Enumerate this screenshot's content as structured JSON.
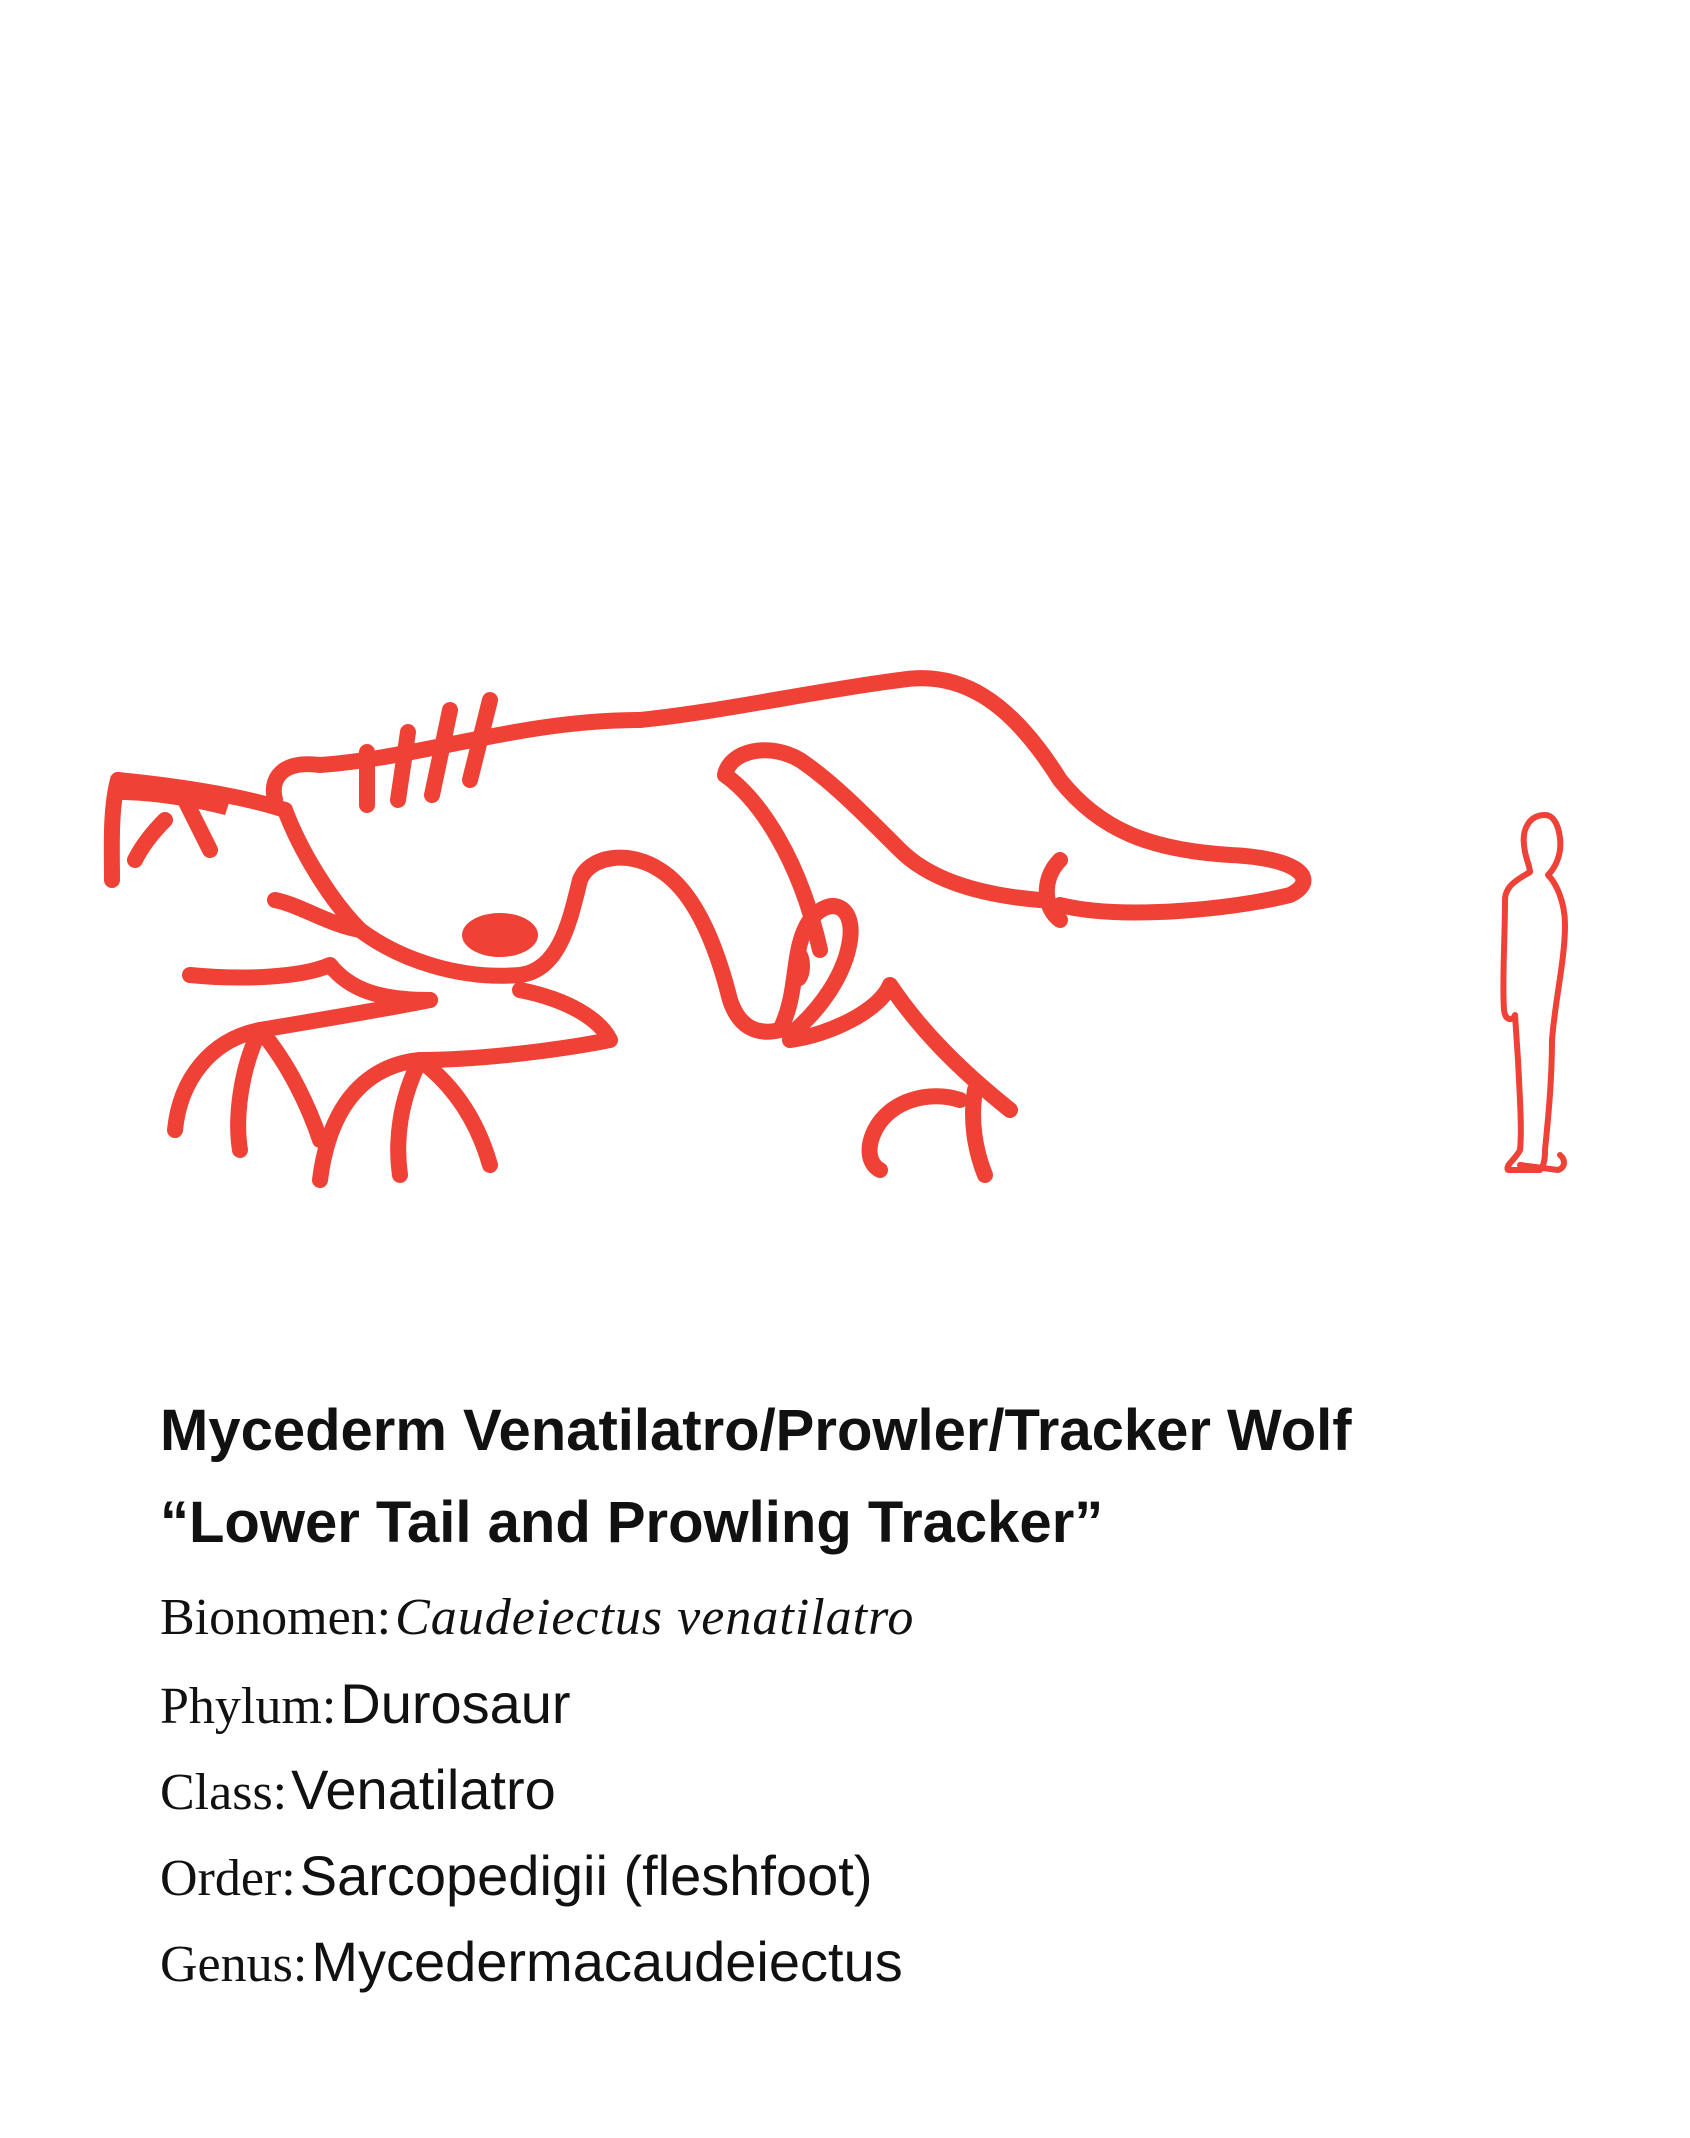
{
  "colors": {
    "accent": "#ef4136",
    "text": "#111111",
    "background": "#ffffff"
  },
  "caption": {
    "title": "Mycederm Venatilatro/Prowler/Tracker Wolf",
    "subtitle": "“Lower Tail and Prowling Tracker”",
    "fields": [
      {
        "label": "Bionomen:",
        "value": "Caudeiectus venatilatro"
      },
      {
        "label": "Phylum:",
        "value": "Durosaur"
      },
      {
        "label": "Class:",
        "value": "Venatilatro"
      },
      {
        "label": "Order:",
        "value": "Sarcopedigii (fleshfoot)"
      },
      {
        "label": "Genus:",
        "value": "Mycedermacaudeiectus"
      }
    ]
  }
}
